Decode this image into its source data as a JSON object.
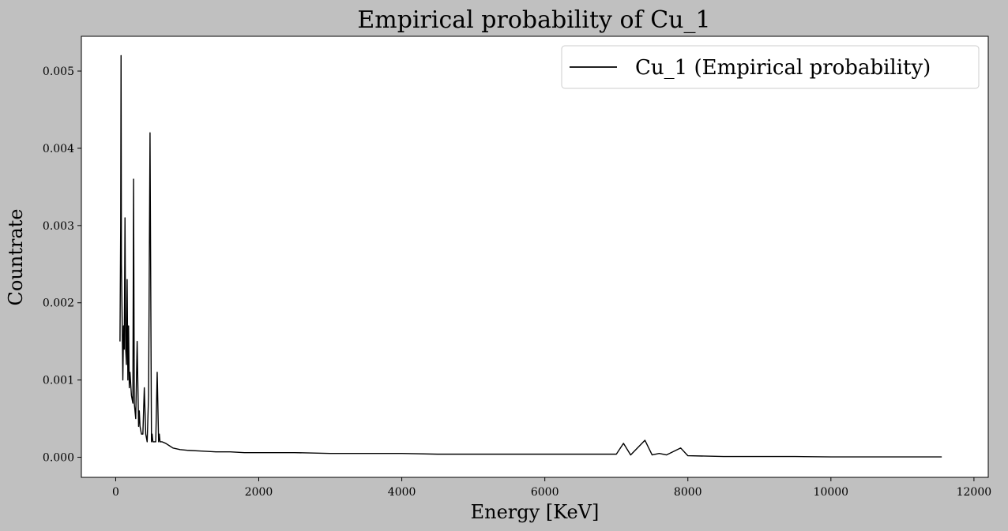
{
  "chart_data": {
    "type": "line",
    "title": "Empirical probability of Cu_1",
    "xlabel": "Energy [KeV]",
    "ylabel": "Countrate",
    "xlim": [
      -480,
      12200
    ],
    "ylim": [
      -0.00026,
      0.00545
    ],
    "xticks": [
      0,
      2000,
      4000,
      6000,
      8000,
      10000,
      12000
    ],
    "xtick_labels": [
      "0",
      "2000",
      "4000",
      "6000",
      "8000",
      "10000",
      "12000"
    ],
    "yticks": [
      0.0,
      0.001,
      0.002,
      0.003,
      0.004,
      0.005
    ],
    "ytick_labels": [
      "0.000",
      "0.001",
      "0.002",
      "0.003",
      "0.004",
      "0.005"
    ],
    "grid": false,
    "legend_position": "top-right",
    "line_color": "#000000",
    "background_color": "#c0c0c0",
    "plot_background_color": "#ffffff",
    "series": [
      {
        "name": "Cu_1 (Empirical probability)",
        "x": [
          60,
          70,
          75,
          80,
          90,
          100,
          110,
          120,
          130,
          140,
          150,
          160,
          170,
          180,
          190,
          200,
          220,
          240,
          250,
          260,
          270,
          280,
          300,
          320,
          330,
          340,
          360,
          380,
          400,
          420,
          440,
          460,
          480,
          500,
          510,
          520,
          540,
          560,
          580,
          600,
          610,
          620,
          650,
          700,
          750,
          800,
          900,
          1000,
          1200,
          1400,
          1600,
          1800,
          2000,
          2500,
          3000,
          3500,
          4000,
          4500,
          5000,
          5500,
          6000,
          6500,
          7000,
          7100,
          7200,
          7400,
          7500,
          7600,
          7700,
          7900,
          8000,
          8500,
          9000,
          9500,
          10000,
          10500,
          11000,
          11500,
          11550
        ],
        "y": [
          0.0015,
          0.003,
          0.0052,
          0.0025,
          0.0018,
          0.001,
          0.0017,
          0.0014,
          0.0031,
          0.0014,
          0.0012,
          0.0023,
          0.001,
          0.0017,
          0.0009,
          0.0011,
          0.0008,
          0.0007,
          0.0036,
          0.0007,
          0.0006,
          0.0005,
          0.0015,
          0.0004,
          0.0006,
          0.0004,
          0.0003,
          0.0003,
          0.0009,
          0.0003,
          0.0002,
          0.0008,
          0.0042,
          0.0002,
          0.0003,
          0.0002,
          0.0002,
          0.0002,
          0.0011,
          0.0002,
          0.0003,
          0.0002,
          0.0002,
          0.00018,
          0.00015,
          0.00012,
          0.0001,
          9e-05,
          8e-05,
          7e-05,
          7e-05,
          6e-05,
          6e-05,
          6e-05,
          5e-05,
          5e-05,
          5e-05,
          4e-05,
          4e-05,
          4e-05,
          4e-05,
          4e-05,
          4e-05,
          0.00018,
          3e-05,
          0.00022,
          3e-05,
          5e-05,
          3e-05,
          0.00012,
          2e-05,
          1e-05,
          1e-05,
          1e-05,
          5e-06,
          5e-06,
          5e-06,
          5e-06,
          5e-06
        ]
      }
    ]
  }
}
